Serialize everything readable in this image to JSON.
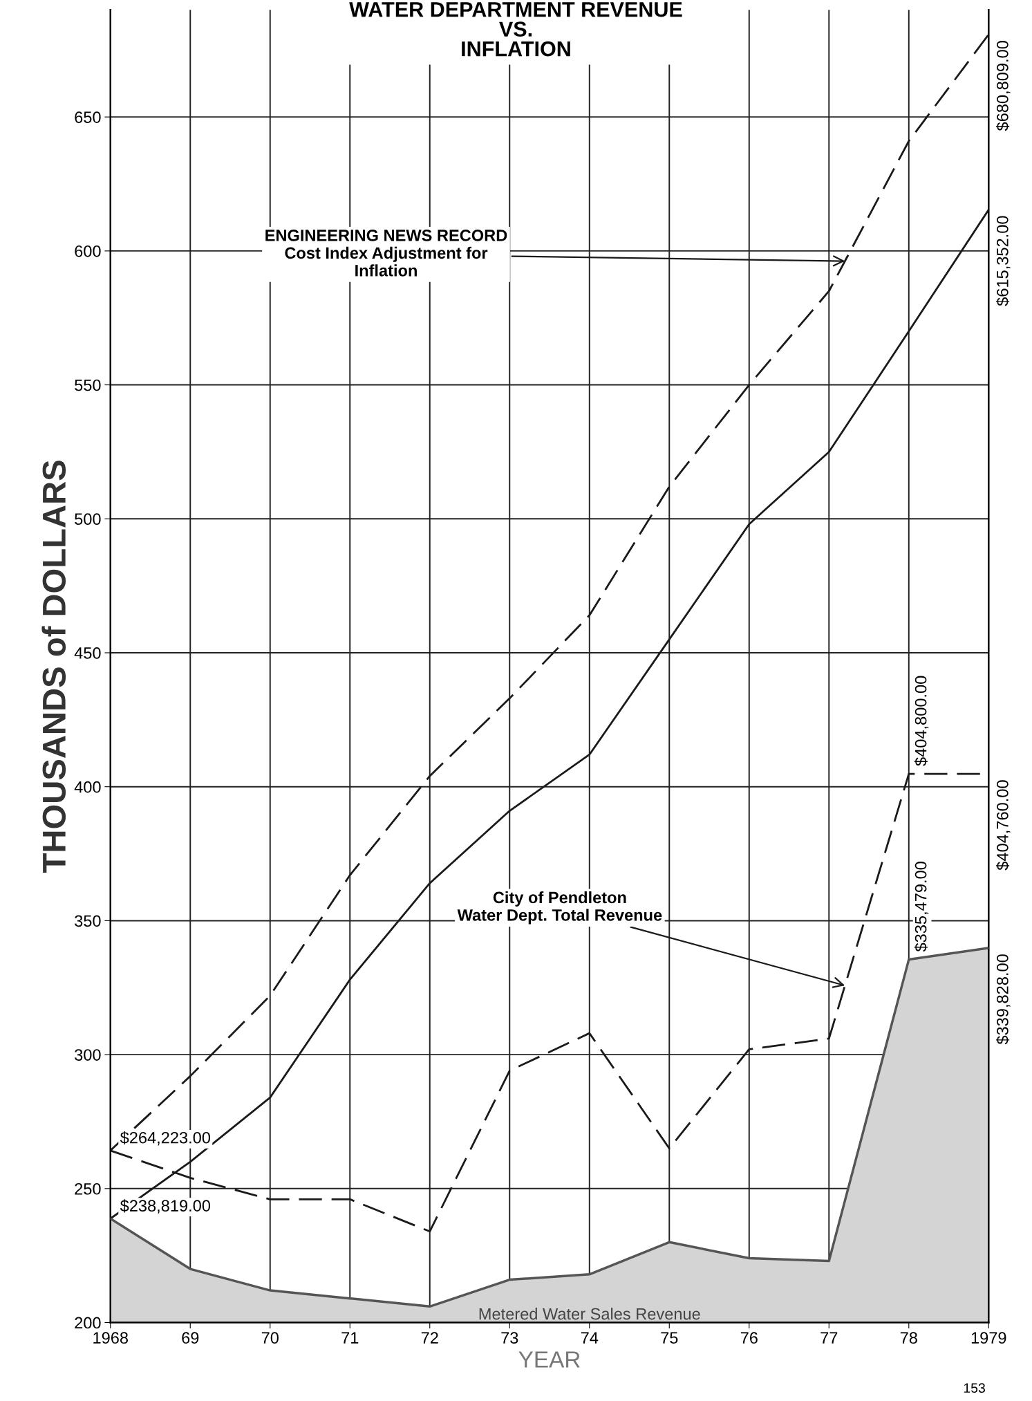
{
  "chart_data": {
    "type": "line",
    "title": "WATER DEPARTMENT REVENUE\nVS.\nINFLATION",
    "xlabel": "YEAR",
    "ylabel": "THOUSANDS of DOLLARS",
    "x": [
      1968,
      1969,
      1970,
      1971,
      1972,
      1973,
      1974,
      1975,
      1976,
      1977,
      1978,
      1979
    ],
    "series": [
      {
        "color": "#1a1a1a",
        "line_style": "dashed",
        "values": [
          264.2,
          292,
          322,
          367,
          404,
          433,
          464,
          512,
          550,
          585,
          641,
          680.8
        ]
      },
      {
        "color": "#1a1a1a",
        "line_style": "solid",
        "values": [
          238.8,
          260,
          284,
          328,
          364,
          391,
          412,
          455,
          498,
          525,
          570,
          615.4
        ]
      },
      {
        "color": "#1a1a1a",
        "line_style": "dashed",
        "values": [
          264.2,
          254,
          246,
          246,
          234,
          294,
          308,
          265,
          302,
          306,
          404.8,
          404.8
        ]
      },
      {
        "type": "area",
        "name": "Metered Water Sales Revenue",
        "color": "#555555",
        "values": [
          238.8,
          220,
          212,
          209,
          206,
          216,
          218,
          230,
          224,
          223,
          335.5,
          339.8
        ]
      }
    ],
    "xlim": [
      1968,
      1979
    ],
    "xticks": [
      {
        "value": 1968,
        "label": "1968"
      },
      {
        "value": 1969,
        "label": "69"
      },
      {
        "value": 1970,
        "label": "70"
      },
      {
        "value": 1971,
        "label": "71"
      },
      {
        "value": 1972,
        "label": "72"
      },
      {
        "value": 1973,
        "label": "73"
      },
      {
        "value": 1974,
        "label": "74"
      },
      {
        "value": 1975,
        "label": "75"
      },
      {
        "value": 1976,
        "label": "76"
      },
      {
        "value": 1977,
        "label": "77"
      },
      {
        "value": 1978,
        "label": "78"
      },
      {
        "value": 1979,
        "label": "1979"
      }
    ],
    "ylim": [
      200,
      690
    ],
    "yticks": [
      200,
      250,
      300,
      350,
      400,
      450,
      500,
      550,
      600,
      650
    ],
    "grid": true,
    "marker": "none",
    "annotations": [
      {
        "text": "ENGINEERING NEWS RECORD\nCost Index Adjustment for\nInflation",
        "x": 1977.2,
        "y": 596.2
      },
      {
        "text": "City of Pendleton\nWater Dept. Total Revenue",
        "x": 1977.2,
        "y": 325.8
      },
      {
        "text": "$264,223.00",
        "x": 1968,
        "y": 264.2
      },
      {
        "text": "$238,819.00",
        "x": 1968,
        "y": 238.8
      },
      {
        "text": "$680,809.00",
        "x": 1979,
        "y": 680.8
      },
      {
        "text": "$615,352.00",
        "x": 1979,
        "y": 615.4
      },
      {
        "text": "$404,800.00",
        "x": 1978,
        "y": 404.8
      },
      {
        "text": "$404,760.00",
        "x": 1979,
        "y": 404.8
      },
      {
        "text": "$335,479.00",
        "x": 1978,
        "y": 335.5
      },
      {
        "text": "$339,828.00",
        "x": 1979,
        "y": 339.8
      },
      "153"
    ]
  }
}
